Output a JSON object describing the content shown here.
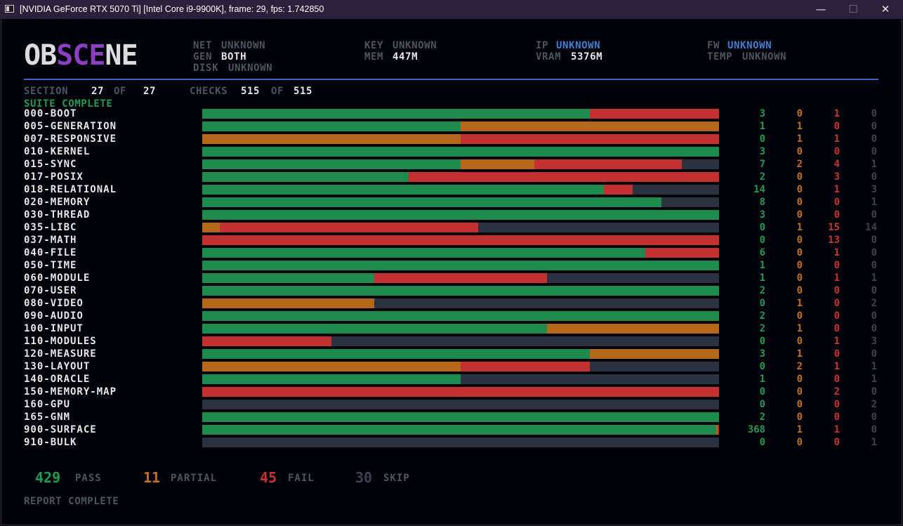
{
  "window": {
    "title": "[NVIDIA GeForce RTX 5070 Ti] [Intel Core i9-9900K], frame: 29, fps: 1.742850",
    "minimize_glyph": "—",
    "maximize_glyph": "☐",
    "close_glyph": "✕"
  },
  "logo": {
    "part1": "OB",
    "part2": "SCE",
    "part3": "NE"
  },
  "header": {
    "net_label": "NET",
    "net_value": "UNKNOWN",
    "gen_label": "GEN",
    "gen_value": "BOTH",
    "disk_label": "DISK",
    "disk_value": "UNKNOWN",
    "key_label": "KEY",
    "key_value": "UNKNOWN",
    "mem_label": "MEM",
    "mem_value": "447M",
    "ip_label": "IP",
    "ip_value": "UNKNOWN",
    "vram_label": "VRAM",
    "vram_value": "5376M",
    "fw_label": "FW",
    "fw_value": "UNKNOWN",
    "temp_label": "TEMP",
    "temp_value": "UNKNOWN"
  },
  "progress": {
    "section_label": "SECTION",
    "section_current": "27",
    "of1": "OF",
    "section_total": "27",
    "checks_label": "CHECKS",
    "checks_current": "515",
    "of2": "OF",
    "checks_total": "515",
    "status": "SUITE COMPLETE"
  },
  "colors": {
    "pass": "#1e8a4c",
    "partial": "#b5681a",
    "fail": "#c23030",
    "skip": "#2c3340"
  },
  "rows": [
    {
      "name": "000-BOOT",
      "pass": 3,
      "partial": 0,
      "fail": 1,
      "skip": 0
    },
    {
      "name": "005-GENERATION",
      "pass": 1,
      "partial": 1,
      "fail": 0,
      "skip": 0
    },
    {
      "name": "007-RESPONSIVE",
      "pass": 0,
      "partial": 1,
      "fail": 1,
      "skip": 0
    },
    {
      "name": "010-KERNEL",
      "pass": 3,
      "partial": 0,
      "fail": 0,
      "skip": 0
    },
    {
      "name": "015-SYNC",
      "pass": 7,
      "partial": 2,
      "fail": 4,
      "skip": 1
    },
    {
      "name": "017-POSIX",
      "pass": 2,
      "partial": 0,
      "fail": 3,
      "skip": 0
    },
    {
      "name": "018-RELATIONAL",
      "pass": 14,
      "partial": 0,
      "fail": 1,
      "skip": 3
    },
    {
      "name": "020-MEMORY",
      "pass": 8,
      "partial": 0,
      "fail": 0,
      "skip": 1
    },
    {
      "name": "030-THREAD",
      "pass": 3,
      "partial": 0,
      "fail": 0,
      "skip": 0
    },
    {
      "name": "035-LIBC",
      "pass": 0,
      "partial": 1,
      "fail": 15,
      "skip": 14
    },
    {
      "name": "037-MATH",
      "pass": 0,
      "partial": 0,
      "fail": 13,
      "skip": 0
    },
    {
      "name": "040-FILE",
      "pass": 6,
      "partial": 0,
      "fail": 1,
      "skip": 0
    },
    {
      "name": "050-TIME",
      "pass": 1,
      "partial": 0,
      "fail": 0,
      "skip": 0
    },
    {
      "name": "060-MODULE",
      "pass": 1,
      "partial": 0,
      "fail": 1,
      "skip": 1
    },
    {
      "name": "070-USER",
      "pass": 2,
      "partial": 0,
      "fail": 0,
      "skip": 0
    },
    {
      "name": "080-VIDEO",
      "pass": 0,
      "partial": 1,
      "fail": 0,
      "skip": 2
    },
    {
      "name": "090-AUDIO",
      "pass": 2,
      "partial": 0,
      "fail": 0,
      "skip": 0
    },
    {
      "name": "100-INPUT",
      "pass": 2,
      "partial": 1,
      "fail": 0,
      "skip": 0
    },
    {
      "name": "110-MODULES",
      "pass": 0,
      "partial": 0,
      "fail": 1,
      "skip": 3
    },
    {
      "name": "120-MEASURE",
      "pass": 3,
      "partial": 1,
      "fail": 0,
      "skip": 0
    },
    {
      "name": "130-LAYOUT",
      "pass": 0,
      "partial": 2,
      "fail": 1,
      "skip": 1
    },
    {
      "name": "140-ORACLE",
      "pass": 1,
      "partial": 0,
      "fail": 0,
      "skip": 1
    },
    {
      "name": "150-MEMORY-MAP",
      "pass": 0,
      "partial": 0,
      "fail": 2,
      "skip": 0
    },
    {
      "name": "160-GPU",
      "pass": 0,
      "partial": 0,
      "fail": 0,
      "skip": 2
    },
    {
      "name": "165-GNM",
      "pass": 2,
      "partial": 0,
      "fail": 0,
      "skip": 0
    },
    {
      "name": "900-SURFACE",
      "pass": 368,
      "partial": 1,
      "fail": 1,
      "skip": 0
    },
    {
      "name": "910-BULK",
      "pass": 0,
      "partial": 0,
      "fail": 0,
      "skip": 1
    }
  ],
  "summary": {
    "pass_count": "429",
    "pass_label": "PASS",
    "partial_count": "11",
    "partial_label": "PARTIAL",
    "fail_count": "45",
    "fail_label": "FAIL",
    "skip_count": "30",
    "skip_label": "SKIP"
  },
  "footer": {
    "report_status": "REPORT COMPLETE"
  }
}
